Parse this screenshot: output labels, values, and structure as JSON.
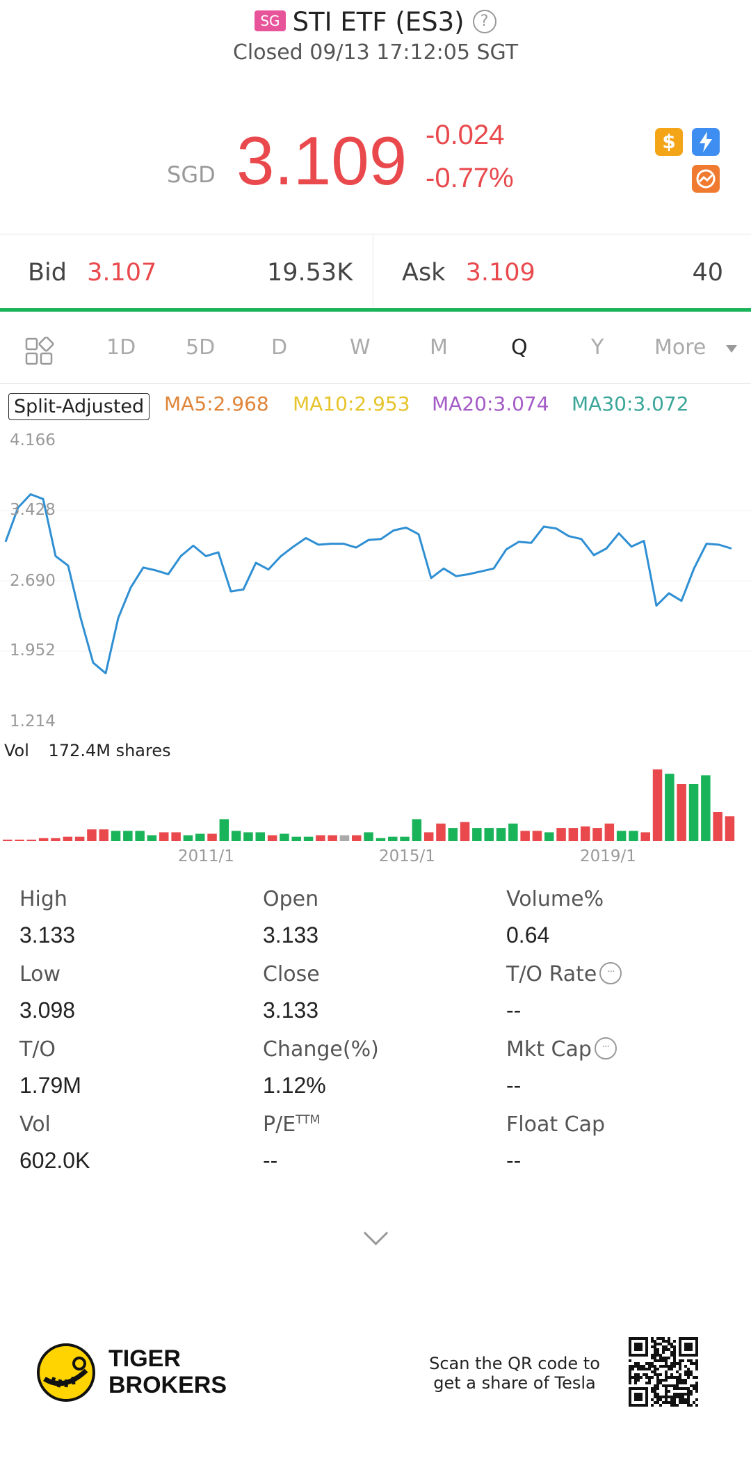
{
  "header": {
    "market_badge": "SG",
    "title": "STI ETF (ES3)",
    "help_icon": "?",
    "status": "Closed 09/13 17:12:05 SGT"
  },
  "quote": {
    "currency": "SGD",
    "price": "3.109",
    "change": "-0.024",
    "change_pct": "-0.77%",
    "price_color": "#e9494c"
  },
  "badges": [
    {
      "icon": "dollar-icon",
      "color": "#f4a417"
    },
    {
      "icon": "lightning-icon",
      "color": "#3d8ef0"
    },
    {
      "icon": "chart-circle-icon",
      "color": "#f07a30"
    }
  ],
  "bidask": {
    "bid_label": "Bid",
    "bid_price": "3.107",
    "bid_size": "19.53K",
    "ask_label": "Ask",
    "ask_price": "3.109",
    "ask_size": "40"
  },
  "tabs": [
    {
      "label": "1D"
    },
    {
      "label": "5D"
    },
    {
      "label": "D"
    },
    {
      "label": "W"
    },
    {
      "label": "M"
    },
    {
      "label": "Q",
      "active": true
    },
    {
      "label": "Y"
    },
    {
      "label": "More"
    }
  ],
  "chart_toolbar": {
    "split_label": "Split-Adjusted",
    "ma": [
      {
        "label": "MA5:2.968",
        "color": "#e0853a"
      },
      {
        "label": "MA10:2.953",
        "color": "#e6c42a"
      },
      {
        "label": "MA20:3.074",
        "color": "#a45bc6"
      },
      {
        "label": "MA30:3.072",
        "color": "#3aa69a"
      }
    ]
  },
  "chart_data": [
    {
      "type": "line",
      "yticks": [
        "4.166",
        "3.428",
        "2.690",
        "1.952",
        "1.214"
      ],
      "ylim": [
        1.214,
        4.166
      ],
      "color": "#2f8fd3",
      "y": [
        3.1,
        3.46,
        3.6,
        3.55,
        2.95,
        2.85,
        2.3,
        1.83,
        1.72,
        2.3,
        2.62,
        2.83,
        2.8,
        2.76,
        2.95,
        3.06,
        2.95,
        2.99,
        2.58,
        2.6,
        2.88,
        2.81,
        2.95,
        3.05,
        3.14,
        3.07,
        3.08,
        3.08,
        3.04,
        3.12,
        3.13,
        3.22,
        3.25,
        3.18,
        2.72,
        2.82,
        2.74,
        2.76,
        2.79,
        2.82,
        3.02,
        3.1,
        3.09,
        3.26,
        3.24,
        3.16,
        3.13,
        2.96,
        3.03,
        3.19,
        3.05,
        3.11,
        2.43,
        2.56,
        2.48,
        2.82,
        3.08,
        3.07,
        3.03
      ]
    },
    {
      "type": "bar",
      "vol_label": "Vol",
      "vol_value": "172.4M shares",
      "xticks": [
        "2011/1",
        "2015/1",
        "2019/1"
      ],
      "up_color": "#19b35a",
      "down_color": "#e9494c",
      "flat_color": "#aaaaaa",
      "values": [
        1,
        1,
        1,
        2,
        2,
        3,
        3,
        8,
        8,
        7,
        7,
        7,
        4,
        6,
        6,
        4,
        5,
        5,
        15,
        7,
        6,
        6,
        4,
        5,
        3,
        3,
        4,
        4,
        4,
        4,
        6,
        2,
        3,
        3,
        15,
        6,
        12,
        9,
        13,
        9,
        9,
        9,
        12,
        7,
        7,
        6,
        9,
        9,
        10,
        9,
        12,
        7,
        7,
        6,
        49,
        46,
        39,
        39,
        45,
        20,
        17
      ],
      "dir": [
        "d",
        "d",
        "d",
        "d",
        "d",
        "d",
        "d",
        "d",
        "d",
        "u",
        "u",
        "u",
        "u",
        "d",
        "d",
        "u",
        "u",
        "d",
        "u",
        "u",
        "u",
        "u",
        "d",
        "u",
        "u",
        "u",
        "d",
        "d",
        "f",
        "d",
        "u",
        "u",
        "u",
        "u",
        "u",
        "d",
        "d",
        "u",
        "d",
        "u",
        "u",
        "u",
        "u",
        "d",
        "d",
        "u",
        "d",
        "d",
        "d",
        "d",
        "d",
        "u",
        "u",
        "d",
        "d",
        "u",
        "d",
        "u",
        "u",
        "d",
        "d"
      ]
    }
  ],
  "stats": [
    {
      "label": "High",
      "value": "3.133"
    },
    {
      "label": "Open",
      "value": "3.133"
    },
    {
      "label": "Volume%",
      "value": "0.64"
    },
    {
      "label": "Low",
      "value": "3.098"
    },
    {
      "label": "Close",
      "value": "3.133"
    },
    {
      "label": "T/O Rate",
      "value": "--",
      "info": true
    },
    {
      "label": "T/O",
      "value": "1.79M"
    },
    {
      "label": "Change(%)",
      "value": "1.12%"
    },
    {
      "label": "Mkt Cap",
      "value": "--",
      "info": true
    },
    {
      "label": "Vol",
      "value": "602.0K"
    },
    {
      "label": "P/E",
      "sup": "TTM",
      "value": "--"
    },
    {
      "label": "Float Cap",
      "value": "--"
    }
  ],
  "footer": {
    "brand_line1": "TIGER",
    "brand_line2": "BROKERS",
    "scan_line1": "Scan the QR code to",
    "scan_line2": "get a share of Tesla"
  }
}
